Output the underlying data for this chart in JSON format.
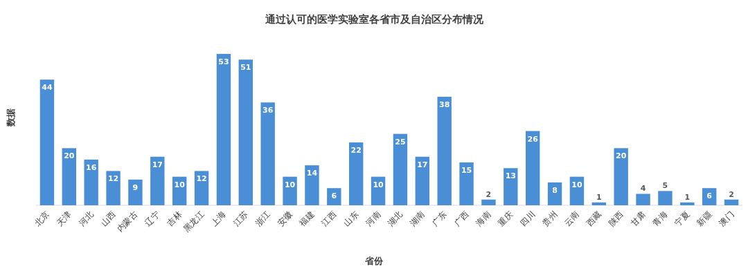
{
  "chart_data": {
    "type": "bar",
    "title": "通过认可的医学实验室各省市及自治区分布情况",
    "xlabel": "省份",
    "ylabel": "数据",
    "categories": [
      "北京",
      "天津",
      "河北",
      "山西",
      "内蒙古",
      "辽宁",
      "吉林",
      "黑龙江",
      "上海",
      "江苏",
      "浙江",
      "安徽",
      "福建",
      "江西",
      "山东",
      "河南",
      "湖北",
      "湖南",
      "广东",
      "广西",
      "海南",
      "重庆",
      "四川",
      "贵州",
      "云南",
      "西藏",
      "陕西",
      "甘肃",
      "青海",
      "宁夏",
      "新疆",
      "澳门"
    ],
    "values": [
      44,
      20,
      16,
      12,
      9,
      17,
      10,
      12,
      53,
      51,
      36,
      10,
      14,
      6,
      22,
      10,
      25,
      17,
      38,
      15,
      2,
      13,
      26,
      8,
      10,
      1,
      20,
      4,
      5,
      1,
      6,
      2
    ],
    "color": "#4a8fd6",
    "data_labels": true
  }
}
